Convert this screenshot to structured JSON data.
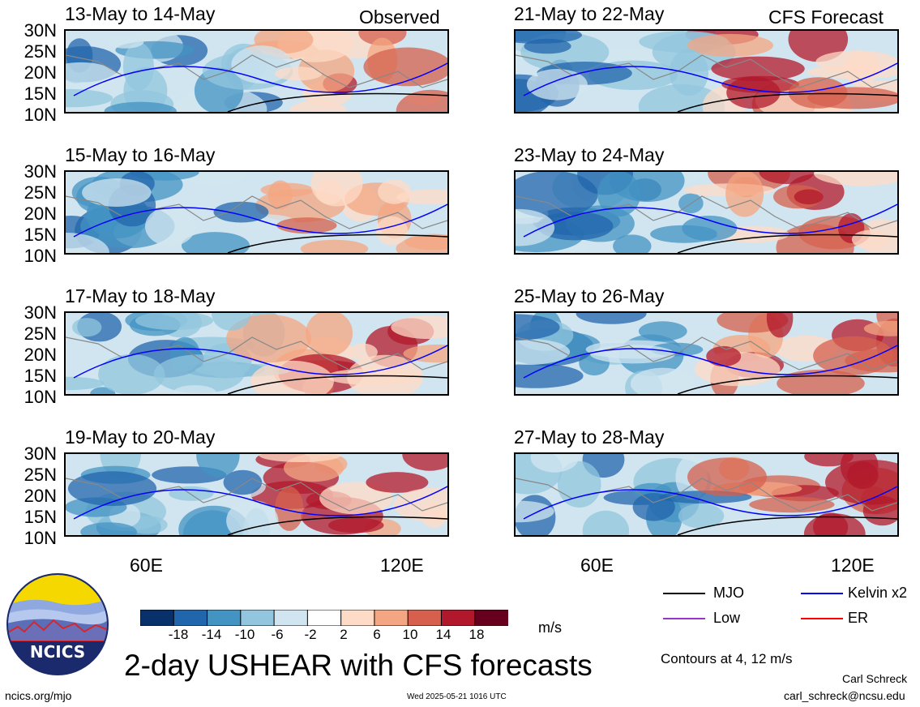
{
  "header": {
    "left_label": "Observed",
    "right_label": "CFS Forecast"
  },
  "panels": [
    {
      "title": "13-May to 14-May"
    },
    {
      "title": "15-May to 16-May"
    },
    {
      "title": "17-May to 18-May"
    },
    {
      "title": "19-May to 20-May"
    },
    {
      "title": "21-May to 22-May"
    },
    {
      "title": "23-May to 24-May"
    },
    {
      "title": "25-May to 26-May"
    },
    {
      "title": "27-May to 28-May"
    }
  ],
  "lat_labels": [
    "30N",
    "25N",
    "20N",
    "15N",
    "10N"
  ],
  "lon_labels": [
    "60E",
    "120E"
  ],
  "colorbar": {
    "labels": [
      "-18",
      "-14",
      "-10",
      "-6",
      "-2",
      "2",
      "6",
      "10",
      "14",
      "18"
    ],
    "colors": [
      "#08306b",
      "#2166ac",
      "#4393c3",
      "#92c5de",
      "#d1e5f0",
      "#ffffff",
      "#fddbc7",
      "#f4a582",
      "#d6604d",
      "#b2182b",
      "#67001f"
    ],
    "unit": "m/s"
  },
  "legend": {
    "items": [
      {
        "label": "MJO",
        "color": "#000000"
      },
      {
        "label": "Kelvin x2",
        "color": "#0000ff"
      },
      {
        "label": "Low",
        "color": "#9933cc"
      },
      {
        "label": "ER",
        "color": "#ff0000"
      }
    ],
    "contour_note": "Contours at 4, 12 m/s"
  },
  "logo": {
    "text": "NCICS"
  },
  "main_title": "2-day USHEAR with CFS forecasts",
  "footer": {
    "left": "ncics.org/mjo",
    "center": "Wed 2025-05-21 1016 UTC",
    "author": "Carl Schreck",
    "email": "carl_schreck@ncsu.edu"
  }
}
